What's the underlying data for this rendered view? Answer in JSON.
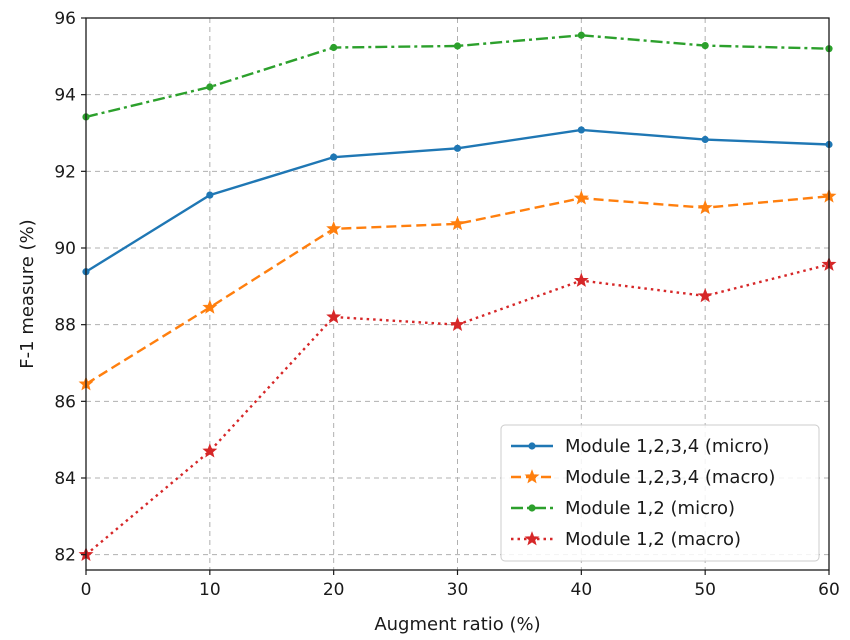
{
  "chart_data": {
    "type": "line",
    "xlabel": "Augment ratio (%)",
    "ylabel": "F-1 measure (%)",
    "xlim": [
      0,
      60
    ],
    "ylim": [
      81.6,
      96
    ],
    "x": [
      0,
      10,
      20,
      30,
      40,
      50,
      60
    ],
    "xticks": [
      0,
      10,
      20,
      30,
      40,
      50,
      60
    ],
    "yticks": [
      82,
      84,
      86,
      88,
      90,
      92,
      94,
      96
    ],
    "grid": true,
    "legend_position": "bottom-right",
    "series": [
      {
        "name": "Module 1,2,3,4 (micro)",
        "values": [
          89.38,
          91.38,
          92.37,
          92.6,
          93.08,
          92.83,
          92.7
        ],
        "color": "#1f77b4",
        "line_style": "solid",
        "marker": "circle"
      },
      {
        "name": "Module 1,2,3,4 (macro)",
        "values": [
          86.45,
          88.45,
          90.5,
          90.63,
          91.3,
          91.05,
          91.35
        ],
        "color": "#ff7f0e",
        "line_style": "dashed",
        "marker": "star"
      },
      {
        "name": "Module 1,2 (micro)",
        "values": [
          93.42,
          94.2,
          95.23,
          95.27,
          95.55,
          95.28,
          95.2
        ],
        "color": "#2ca02c",
        "line_style": "dashdot",
        "marker": "circle"
      },
      {
        "name": "Module 1,2 (macro)",
        "values": [
          82.0,
          84.7,
          88.2,
          88.0,
          89.15,
          88.75,
          89.57
        ],
        "color": "#d62728",
        "line_style": "dotted",
        "marker": "star"
      }
    ]
  }
}
